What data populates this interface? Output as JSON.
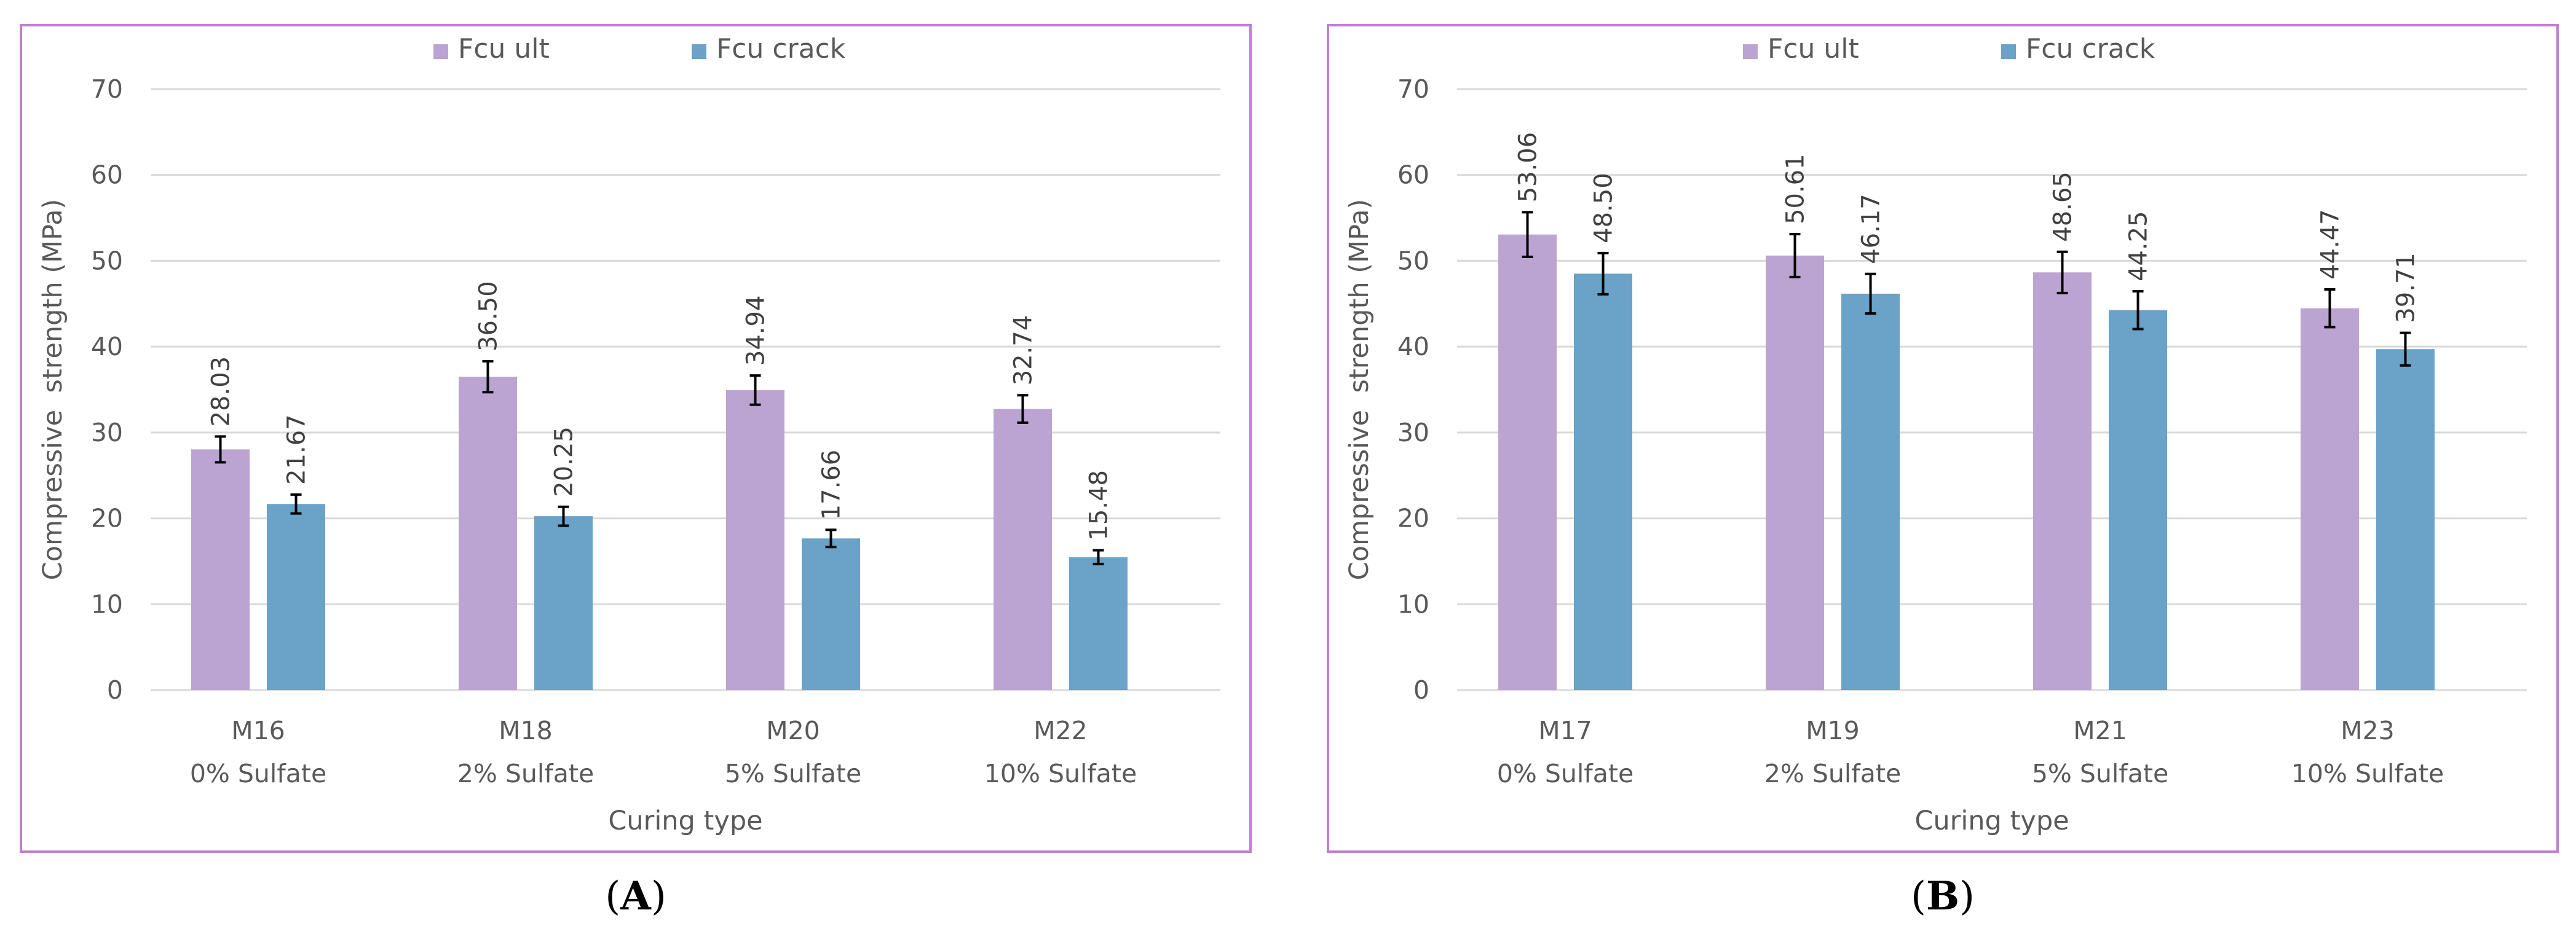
{
  "chart_data": [
    {
      "type": "bar",
      "panel": "A",
      "caption": "(A)",
      "caption_letter": "A",
      "categories": [
        [
          "M16",
          "0% Sulfate"
        ],
        [
          "M18",
          "2% Sulfate"
        ],
        [
          "M20",
          "5% Sulfate"
        ],
        [
          "M22",
          "10% Sulfate"
        ]
      ],
      "series": [
        {
          "name": "Fcu ult",
          "color": "#bba4d2",
          "values": [
            28.03,
            36.5,
            34.94,
            32.74
          ],
          "labels": [
            "28.03",
            "36.50",
            "34.94",
            "32.74"
          ],
          "errors": [
            1.5,
            1.8,
            1.7,
            1.6
          ]
        },
        {
          "name": "Fcu crack",
          "color": "#6aa2c8",
          "values": [
            21.67,
            20.25,
            17.66,
            15.48
          ],
          "labels": [
            "21.67",
            "20.25",
            "17.66",
            "15.48"
          ],
          "errors": [
            1.1,
            1.1,
            1.0,
            0.8
          ]
        }
      ],
      "xlabel": "Curing type",
      "ylabel": "Compressive  strength (MPa)",
      "ylim": [
        0,
        70
      ],
      "yticks": [
        0,
        10,
        20,
        30,
        40,
        50,
        60,
        70
      ],
      "grid": true,
      "legend": "top-center"
    },
    {
      "type": "bar",
      "panel": "B",
      "caption": "(B)",
      "caption_letter": "B",
      "categories": [
        [
          "M17",
          "0% Sulfate"
        ],
        [
          "M19",
          "2% Sulfate"
        ],
        [
          "M21",
          "5% Sulfate"
        ],
        [
          "M23",
          "10% Sulfate"
        ]
      ],
      "series": [
        {
          "name": "Fcu ult",
          "color": "#bba4d2",
          "values": [
            53.06,
            50.61,
            48.65,
            44.47
          ],
          "labels": [
            "53.06",
            "50.61",
            "48.65",
            "44.47"
          ],
          "errors": [
            2.6,
            2.5,
            2.4,
            2.2
          ]
        },
        {
          "name": "Fcu crack",
          "color": "#6aa2c8",
          "values": [
            48.5,
            46.17,
            44.25,
            39.71
          ],
          "labels": [
            "48.50",
            "46.17",
            "44.25",
            "39.71"
          ],
          "errors": [
            2.4,
            2.3,
            2.2,
            1.9
          ]
        }
      ],
      "xlabel": "Curing type",
      "ylabel": "Compressive  strength (MPa)",
      "ylim": [
        0,
        70
      ],
      "yticks": [
        0,
        10,
        20,
        30,
        40,
        50,
        60,
        70
      ],
      "grid": true,
      "legend": "top-center"
    }
  ]
}
